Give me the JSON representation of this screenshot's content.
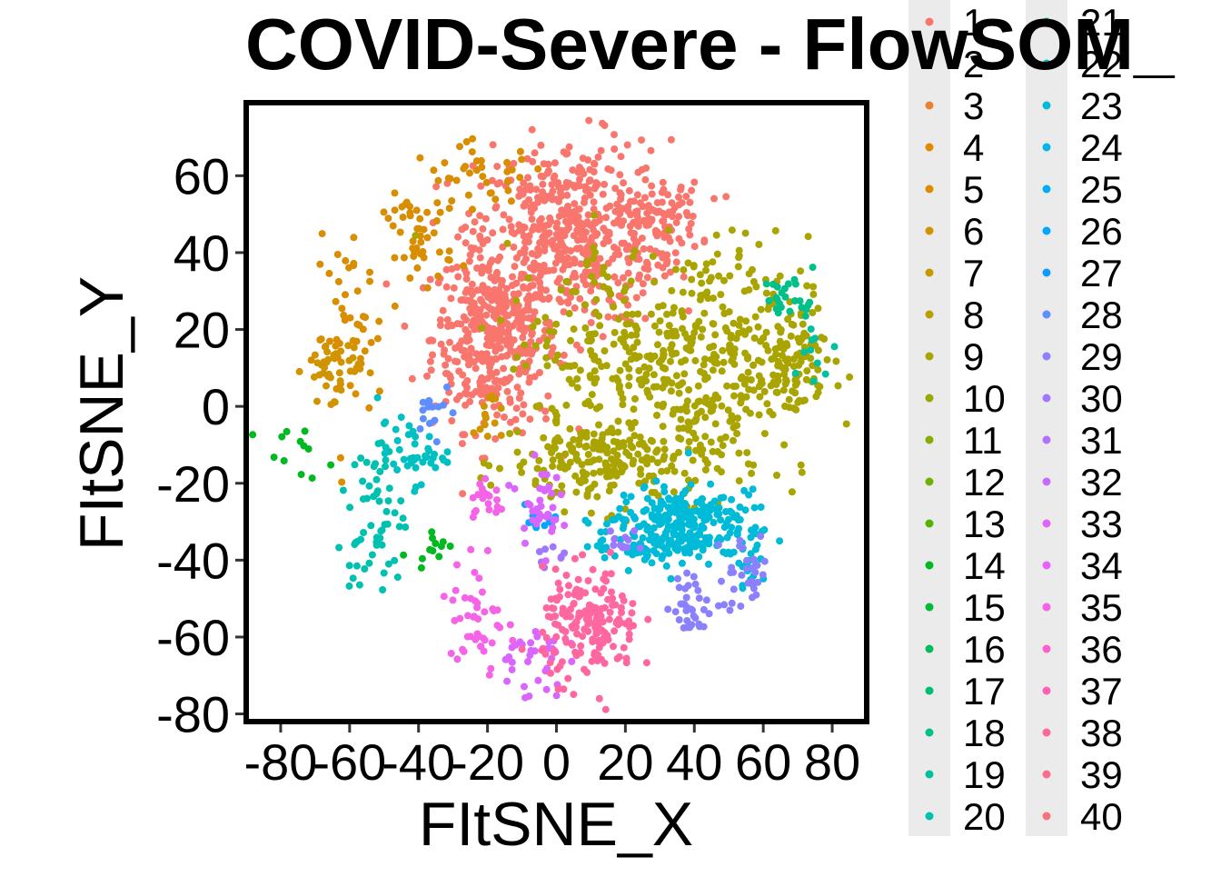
{
  "chart_data": {
    "type": "scatter",
    "title": "COVID-Severe - FlowSOM_",
    "xlabel": "FItSNE_X",
    "ylabel": "FItSNE_Y",
    "xlim": [
      -90,
      90
    ],
    "ylim": [
      -82,
      79
    ],
    "x_ticks": [
      -80,
      -60,
      -40,
      -20,
      0,
      20,
      40,
      60,
      80
    ],
    "x_tick_labels": [
      "-80",
      "-60",
      "-40",
      "-20",
      "0",
      "20",
      "40",
      "60",
      "80"
    ],
    "y_ticks": [
      -80,
      -60,
      -40,
      -20,
      0,
      20,
      40,
      60
    ],
    "y_tick_labels": [
      "-80",
      "-60",
      "-40",
      "-20",
      "0",
      "20",
      "40",
      "60"
    ],
    "grid": false,
    "legend_position": "right",
    "legend_columns": 2,
    "series": [
      {
        "name": "1",
        "color": "#F8766D",
        "clusters": [
          [
            -18,
            18,
            9,
            12,
            420
          ],
          [
            5,
            45,
            14,
            12,
            500
          ],
          [
            30,
            48,
            6,
            5,
            80
          ]
        ]
      },
      {
        "name": "2",
        "color": "#F27D52",
        "clusters": []
      },
      {
        "name": "3",
        "color": "#EA8331",
        "clusters": []
      },
      {
        "name": "4",
        "color": "#E38900",
        "clusters": []
      },
      {
        "name": "5",
        "color": "#D98D00",
        "clusters": [
          [
            -60,
            18,
            5,
            12,
            50
          ],
          [
            -40,
            43,
            5,
            6,
            45
          ],
          [
            -22,
            60,
            10,
            4,
            40
          ]
        ]
      },
      {
        "name": "6",
        "color": "#D09400",
        "clusters": [
          [
            -65,
            10,
            4,
            4,
            40
          ],
          [
            -20,
            -2,
            2,
            4,
            15
          ]
        ]
      },
      {
        "name": "7",
        "color": "#C49A00",
        "clusters": []
      },
      {
        "name": "8",
        "color": "#B79F00",
        "clusters": []
      },
      {
        "name": "9",
        "color": "#A9A400",
        "clusters": [
          [
            15,
            -15,
            14,
            6,
            200
          ],
          [
            45,
            12,
            14,
            16,
            300
          ],
          [
            20,
            15,
            18,
            14,
            200
          ],
          [
            68,
            12,
            5,
            8,
            80
          ]
        ]
      },
      {
        "name": "10",
        "color": "#99A800",
        "clusters": []
      },
      {
        "name": "11",
        "color": "#86AC00",
        "clusters": []
      },
      {
        "name": "12",
        "color": "#6FB000",
        "clusters": []
      },
      {
        "name": "13",
        "color": "#52B400",
        "clusters": []
      },
      {
        "name": "14",
        "color": "#00B81F",
        "clusters": [
          [
            -36,
            -36,
            3,
            2,
            12
          ],
          [
            -76,
            -12,
            5,
            3,
            12
          ]
        ]
      },
      {
        "name": "15",
        "color": "#00BA38",
        "clusters": []
      },
      {
        "name": "16",
        "color": "#00BC59",
        "clusters": []
      },
      {
        "name": "17",
        "color": "#00BD73",
        "clusters": []
      },
      {
        "name": "18",
        "color": "#00BF89",
        "clusters": [
          [
            68,
            28,
            4,
            3,
            25
          ]
        ]
      },
      {
        "name": "19",
        "color": "#00C09E",
        "clusters": [
          [
            75,
            14,
            3,
            5,
            10
          ]
        ]
      },
      {
        "name": "20",
        "color": "#00C1AF",
        "clusters": [
          [
            -52,
            -25,
            4,
            10,
            45
          ],
          [
            -56,
            -42,
            4,
            4,
            15
          ]
        ]
      },
      {
        "name": "21",
        "color": "#00C0C1",
        "clusters": [
          [
            -42,
            -12,
            5,
            4,
            40
          ]
        ]
      },
      {
        "name": "22",
        "color": "#00BFC4",
        "clusters": []
      },
      {
        "name": "23",
        "color": "#00BBD8",
        "clusters": [
          [
            35,
            -30,
            9,
            5,
            200
          ],
          [
            25,
            -36,
            8,
            3,
            60
          ],
          [
            55,
            -35,
            3,
            6,
            40
          ]
        ]
      },
      {
        "name": "24",
        "color": "#00B6E8",
        "clusters": []
      },
      {
        "name": "25",
        "color": "#00AEF6",
        "clusters": []
      },
      {
        "name": "26",
        "color": "#00A6FF",
        "clusters": [
          [
            -5,
            -30,
            3,
            3,
            10
          ]
        ]
      },
      {
        "name": "27",
        "color": "#0C9BFF",
        "clusters": []
      },
      {
        "name": "28",
        "color": "#5F8EFF",
        "clusters": [
          [
            -35,
            0,
            3,
            3,
            15
          ]
        ]
      },
      {
        "name": "29",
        "color": "#8B81FF",
        "clusters": [
          [
            40,
            -52,
            4,
            4,
            35
          ],
          [
            55,
            -43,
            4,
            5,
            30
          ]
        ]
      },
      {
        "name": "30",
        "color": "#9F78FF",
        "clusters": [
          [
            20,
            -35,
            3,
            2,
            10
          ],
          [
            -2,
            -38,
            2,
            2,
            8
          ]
        ]
      },
      {
        "name": "31",
        "color": "#B370FF",
        "clusters": []
      },
      {
        "name": "32",
        "color": "#C86BFF",
        "clusters": []
      },
      {
        "name": "33",
        "color": "#DA65FF",
        "clusters": [
          [
            -5,
            -25,
            3,
            5,
            35
          ],
          [
            -8,
            -66,
            5,
            5,
            35
          ]
        ]
      },
      {
        "name": "34",
        "color": "#E962FF",
        "clusters": []
      },
      {
        "name": "35",
        "color": "#F563E6",
        "clusters": [
          [
            -23,
            -55,
            4,
            10,
            45
          ],
          [
            -20,
            -25,
            3,
            3,
            20
          ]
        ]
      },
      {
        "name": "36",
        "color": "#FE61CE",
        "clusters": []
      },
      {
        "name": "37",
        "color": "#FF63B8",
        "clusters": []
      },
      {
        "name": "38",
        "color": "#FF67A1",
        "clusters": [
          [
            10,
            -57,
            7,
            7,
            180
          ]
        ]
      },
      {
        "name": "39",
        "color": "#FF6C91",
        "clusters": []
      },
      {
        "name": "40",
        "color": "#F97280",
        "clusters": []
      }
    ],
    "cluster_format": [
      "x_center",
      "y_center",
      "x_spread",
      "y_spread",
      "count"
    ]
  }
}
